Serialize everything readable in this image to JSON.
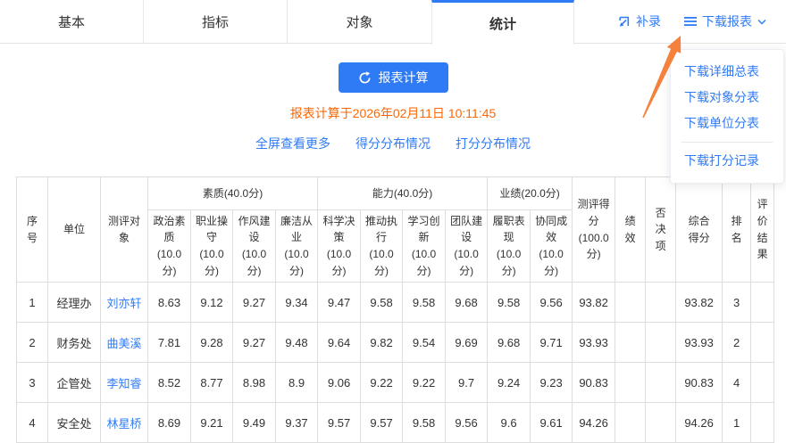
{
  "tabs": [
    {
      "label": "基本",
      "active": false
    },
    {
      "label": "指标",
      "active": false
    },
    {
      "label": "对象",
      "active": false
    },
    {
      "label": "统计",
      "active": true
    }
  ],
  "header_actions": {
    "backfill_label": "补录",
    "download_label": "下载报表"
  },
  "toolbar": {
    "calc_button_label": "报表计算",
    "calc_status": "报表计算于2026年02月11日 10:11:45",
    "links": [
      "全屏查看更多",
      "得分分布情况",
      "打分分布情况"
    ]
  },
  "dropdown_menu": {
    "items": [
      "下载详细总表",
      "下载对象分表",
      "下载单位分表",
      "下载打分记录"
    ]
  },
  "table": {
    "fixed_headers": {
      "no": "序\n号",
      "unit": "单位",
      "evaluatee": "测评对\n象",
      "total_name": "测评得分",
      "total_score": "(100.0分)",
      "perf": "绩\n效",
      "veto": "否\n决\n项",
      "composite": "综合\n得分",
      "rank": "排\n名",
      "result": "评\n价\n结\n果"
    },
    "groups": [
      {
        "label": "素质(40.0分)",
        "span": 4
      },
      {
        "label": "能力(40.0分)",
        "span": 4
      },
      {
        "label": "业绩(20.0分)",
        "span": 2
      }
    ],
    "sub_headers": [
      {
        "name": "政治素质",
        "score": "(10.0分)"
      },
      {
        "name": "职业操守",
        "score": "(10.0分)"
      },
      {
        "name": "作风建设",
        "score": "(10.0分)"
      },
      {
        "name": "廉洁从业",
        "score": "(10.0分)"
      },
      {
        "name": "科学决策",
        "score": "(10.0分)"
      },
      {
        "name": "推动执行",
        "score": "(10.0分)"
      },
      {
        "name": "学习创新",
        "score": "(10.0分)"
      },
      {
        "name": "团队建设",
        "score": "(10.0分)"
      },
      {
        "name": "履职表现",
        "score": "(10.0分)"
      },
      {
        "name": "协同成效",
        "score": "(10.0分)"
      }
    ],
    "rows": [
      {
        "no": "1",
        "unit": "经理办",
        "name": "刘亦轩",
        "scores": [
          "8.63",
          "9.12",
          "9.27",
          "9.34",
          "9.47",
          "9.58",
          "9.58",
          "9.68",
          "9.58",
          "9.56"
        ],
        "total": "93.82",
        "perf": "",
        "veto": "",
        "composite": "93.82",
        "rank": "3",
        "result": ""
      },
      {
        "no": "2",
        "unit": "财务处",
        "name": "曲美溪",
        "scores": [
          "7.81",
          "9.28",
          "9.27",
          "9.48",
          "9.64",
          "9.82",
          "9.54",
          "9.69",
          "9.68",
          "9.71"
        ],
        "total": "93.93",
        "perf": "",
        "veto": "",
        "composite": "93.93",
        "rank": "2",
        "result": ""
      },
      {
        "no": "3",
        "unit": "企管处",
        "name": "李知睿",
        "scores": [
          "8.52",
          "8.77",
          "8.98",
          "8.9",
          "9.06",
          "9.22",
          "9.22",
          "9.7",
          "9.24",
          "9.23"
        ],
        "total": "90.83",
        "perf": "",
        "veto": "",
        "composite": "90.83",
        "rank": "4",
        "result": ""
      },
      {
        "no": "4",
        "unit": "安全处",
        "name": "林星桥",
        "scores": [
          "8.69",
          "9.21",
          "9.49",
          "9.37",
          "9.57",
          "9.57",
          "9.58",
          "9.56",
          "9.6",
          "9.61"
        ],
        "total": "94.26",
        "perf": "",
        "veto": "",
        "composite": "94.26",
        "rank": "1",
        "result": ""
      }
    ]
  },
  "colors": {
    "accent_blue": "#2f7bf5",
    "status_orange": "#ff6600",
    "arrow_orange": "#f5823c",
    "table_border": "#dddddd"
  }
}
